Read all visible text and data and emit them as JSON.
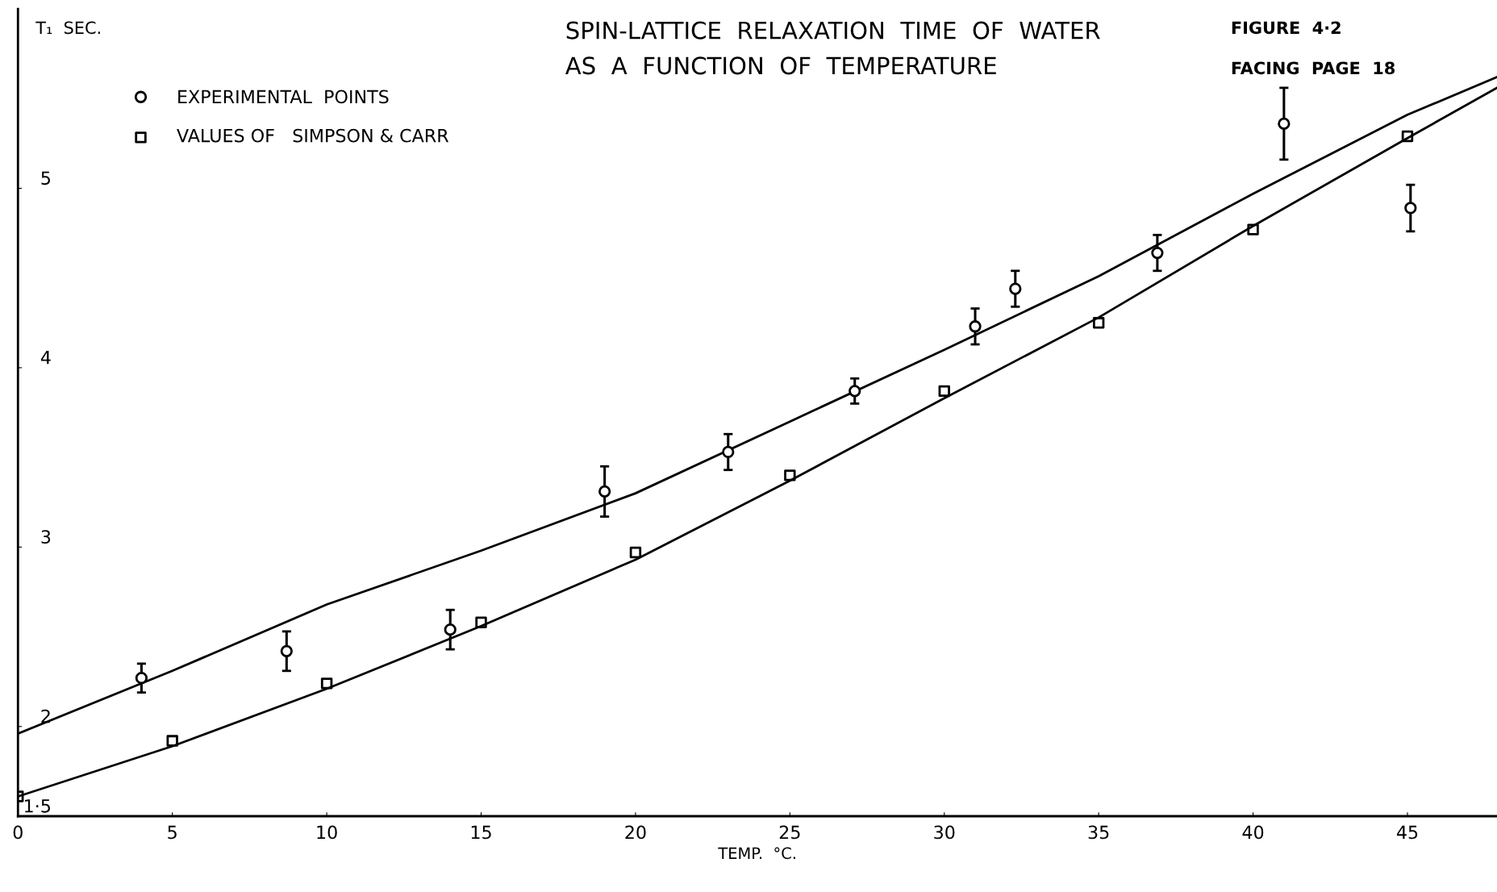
{
  "chart_data": {
    "type": "scatter",
    "title": "SPIN-LATTICE  RELAXATION  TIME  OF  WATER\nAS  A  FUNCTION  OF  TEMPERATURE",
    "xlabel": "TEMP.  °C.",
    "ylabel": "T₁  SEC.",
    "xlim": [
      0,
      47.9
    ],
    "ylim": [
      1.5,
      6.0
    ],
    "xticks": [
      0,
      5,
      10,
      15,
      20,
      25,
      30,
      35,
      40,
      45
    ],
    "yticks": [
      {
        "value": 1.5,
        "label": "1·5"
      },
      2,
      3,
      4,
      5
    ],
    "grid": false,
    "legend": "top left",
    "annotations": [
      "FIGURE  4·2",
      "FACING  PAGE  18"
    ],
    "series": [
      {
        "name": "EXPERIMENTAL  POINTS",
        "type": "scatter",
        "marker": "circle",
        "color": "#000000",
        "x": [
          4.0,
          8.7,
          14.0,
          19.0,
          23.0,
          27.1,
          31.0,
          32.3,
          36.9,
          41.0,
          45.1
        ],
        "values": [
          2.27,
          2.42,
          2.54,
          3.31,
          3.53,
          3.87,
          4.23,
          4.44,
          4.64,
          5.36,
          4.89
        ],
        "errors": [
          0.08,
          0.11,
          0.11,
          0.14,
          0.1,
          0.07,
          0.1,
          0.1,
          0.1,
          0.2,
          0.13
        ]
      },
      {
        "name": "VALUES OF   SIMPSON & CARR",
        "type": "scatter",
        "marker": "square",
        "color": "#000000",
        "x": [
          0,
          5,
          10,
          15,
          20,
          25,
          30,
          35,
          40,
          45
        ],
        "values": [
          1.61,
          1.92,
          2.24,
          2.58,
          2.97,
          3.4,
          3.87,
          4.25,
          4.77,
          5.29
        ]
      },
      {
        "type": "line",
        "marker": "none",
        "line_style": "solid",
        "color": "#000000",
        "x": [
          0,
          5,
          10,
          15,
          20,
          25,
          30,
          35,
          40,
          45,
          47.9
        ],
        "values": [
          1.96,
          2.31,
          2.68,
          2.98,
          3.3,
          3.7,
          4.1,
          4.51,
          4.97,
          5.41,
          5.62
        ]
      },
      {
        "type": "line",
        "marker": "none",
        "line_style": "solid",
        "color": "#000000",
        "x": [
          0,
          5,
          10,
          15,
          20,
          25,
          30,
          35,
          40,
          45,
          47.9
        ],
        "values": [
          1.61,
          1.89,
          2.21,
          2.56,
          2.93,
          3.37,
          3.83,
          4.28,
          4.79,
          5.28,
          5.56
        ]
      }
    ]
  }
}
